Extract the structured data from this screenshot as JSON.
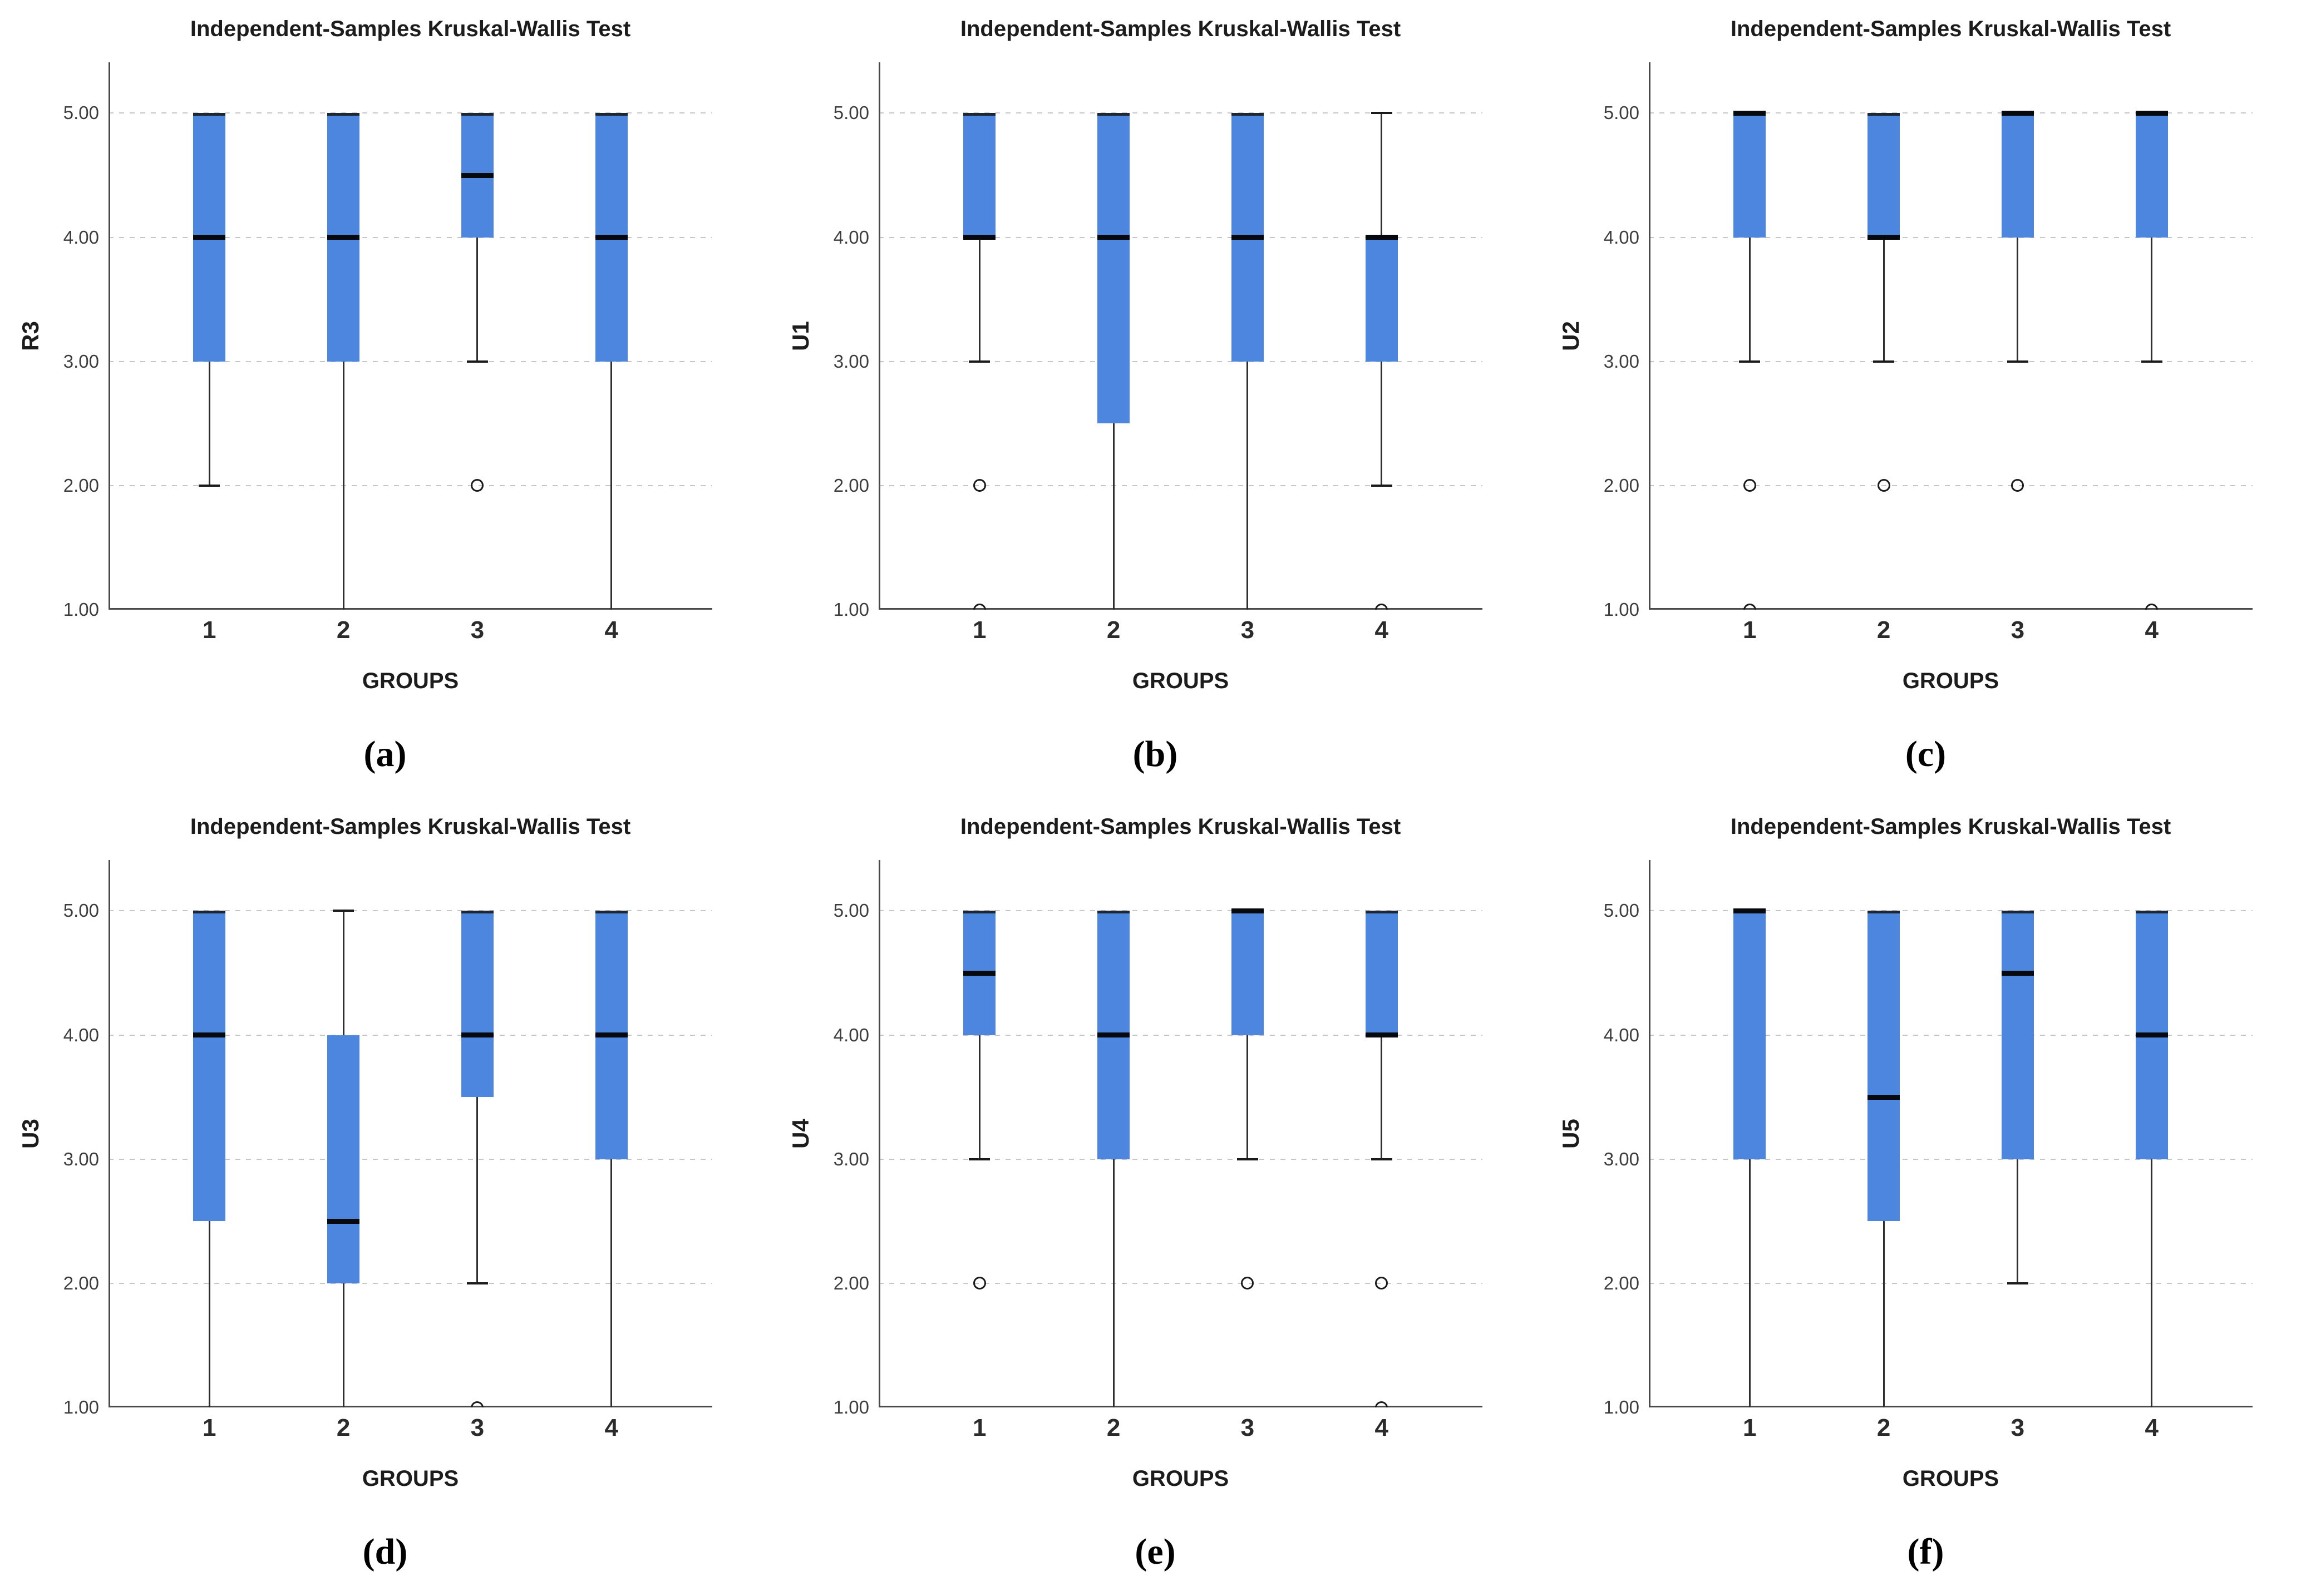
{
  "figure": {
    "background": "#ffffff",
    "box_fill_color": "#4c86df",
    "median_color": "#06090e",
    "gridline_color": "#c6c6c6",
    "axis_color": "#4a4a4a"
  },
  "chart_data": [
    {
      "type": "box",
      "panel_label": "(a)",
      "title": "Independent-Samples Kruskal-Wallis Test",
      "ylabel": "R3",
      "xlabel": "GROUPS",
      "categories": [
        "1",
        "2",
        "3",
        "4"
      ],
      "ytick_values": [
        5.0,
        4.0,
        3.0,
        2.0,
        1.0
      ],
      "ytick_labels": [
        "5.00",
        "4.00",
        "3.00",
        "2.00",
        "1.00"
      ],
      "ylim": [
        1.0,
        5.41
      ],
      "grid": "dashed-horizontal",
      "legend": "none",
      "boxes": [
        {
          "group": "1",
          "q1": 3.0,
          "median": 4.0,
          "q3": 5.0,
          "whisker_low": 2.0,
          "whisker_high": 5.0,
          "outliers": []
        },
        {
          "group": "2",
          "q1": 3.0,
          "median": 4.0,
          "q3": 5.0,
          "whisker_low": 1.0,
          "whisker_high": 5.0,
          "outliers": []
        },
        {
          "group": "3",
          "q1": 4.0,
          "median": 4.5,
          "q3": 5.0,
          "whisker_low": 3.0,
          "whisker_high": 5.0,
          "outliers": [
            2.0
          ]
        },
        {
          "group": "4",
          "q1": 3.0,
          "median": 4.0,
          "q3": 5.0,
          "whisker_low": 1.0,
          "whisker_high": 5.0,
          "outliers": []
        }
      ]
    },
    {
      "type": "box",
      "panel_label": "(b)",
      "title": "Independent-Samples Kruskal-Wallis Test",
      "ylabel": "U1",
      "xlabel": "GROUPS",
      "categories": [
        "1",
        "2",
        "3",
        "4"
      ],
      "ytick_values": [
        5.0,
        4.0,
        3.0,
        2.0,
        1.0
      ],
      "ytick_labels": [
        "5.00",
        "4.00",
        "3.00",
        "2.00",
        "1.00"
      ],
      "ylim": [
        1.0,
        5.41
      ],
      "grid": "dashed-horizontal",
      "legend": "none",
      "boxes": [
        {
          "group": "1",
          "q1": 4.0,
          "median": 4.0,
          "q3": 5.0,
          "whisker_low": 3.0,
          "whisker_high": 5.0,
          "outliers": [
            2.0,
            1.0
          ]
        },
        {
          "group": "2",
          "q1": 2.5,
          "median": 4.0,
          "q3": 5.0,
          "whisker_low": 1.0,
          "whisker_high": 5.0,
          "outliers": []
        },
        {
          "group": "3",
          "q1": 3.0,
          "median": 4.0,
          "q3": 5.0,
          "whisker_low": 1.0,
          "whisker_high": 5.0,
          "outliers": []
        },
        {
          "group": "4",
          "q1": 3.0,
          "median": 4.0,
          "q3": 4.0,
          "whisker_low": 2.0,
          "whisker_high": 5.0,
          "outliers": [
            1.0
          ]
        }
      ]
    },
    {
      "type": "box",
      "panel_label": "(c)",
      "title": "Independent-Samples Kruskal-Wallis Test",
      "ylabel": "U2",
      "xlabel": "GROUPS",
      "categories": [
        "1",
        "2",
        "3",
        "4"
      ],
      "ytick_values": [
        5.0,
        4.0,
        3.0,
        2.0,
        1.0
      ],
      "ytick_labels": [
        "5.00",
        "4.00",
        "3.00",
        "2.00",
        "1.00"
      ],
      "ylim": [
        1.0,
        5.41
      ],
      "grid": "dashed-horizontal",
      "legend": "none",
      "boxes": [
        {
          "group": "1",
          "q1": 4.0,
          "median": 5.0,
          "q3": 5.0,
          "whisker_low": 3.0,
          "whisker_high": 5.0,
          "outliers": [
            2.0,
            1.0
          ]
        },
        {
          "group": "2",
          "q1": 4.0,
          "median": 4.0,
          "q3": 5.0,
          "whisker_low": 3.0,
          "whisker_high": 5.0,
          "outliers": [
            2.0
          ]
        },
        {
          "group": "3",
          "q1": 4.0,
          "median": 5.0,
          "q3": 5.0,
          "whisker_low": 3.0,
          "whisker_high": 5.0,
          "outliers": [
            2.0
          ]
        },
        {
          "group": "4",
          "q1": 4.0,
          "median": 5.0,
          "q3": 5.0,
          "whisker_low": 3.0,
          "whisker_high": 5.0,
          "outliers": [
            1.0
          ]
        }
      ]
    },
    {
      "type": "box",
      "panel_label": "(d)",
      "title": "Independent-Samples Kruskal-Wallis Test",
      "ylabel": "U3",
      "xlabel": "GROUPS",
      "categories": [
        "1",
        "2",
        "3",
        "4"
      ],
      "ytick_values": [
        5.0,
        4.0,
        3.0,
        2.0,
        1.0
      ],
      "ytick_labels": [
        "5.00",
        "4.00",
        "3.00",
        "2.00",
        "1.00"
      ],
      "ylim": [
        1.0,
        5.41
      ],
      "grid": "dashed-horizontal",
      "legend": "none",
      "boxes": [
        {
          "group": "1",
          "q1": 2.5,
          "median": 4.0,
          "q3": 5.0,
          "whisker_low": 1.0,
          "whisker_high": 5.0,
          "outliers": []
        },
        {
          "group": "2",
          "q1": 2.0,
          "median": 2.5,
          "q3": 4.0,
          "whisker_low": 1.0,
          "whisker_high": 5.0,
          "outliers": []
        },
        {
          "group": "3",
          "q1": 3.5,
          "median": 4.0,
          "q3": 5.0,
          "whisker_low": 2.0,
          "whisker_high": 5.0,
          "outliers": [
            1.0
          ]
        },
        {
          "group": "4",
          "q1": 3.0,
          "median": 4.0,
          "q3": 5.0,
          "whisker_low": 1.0,
          "whisker_high": 5.0,
          "outliers": []
        }
      ]
    },
    {
      "type": "box",
      "panel_label": "(e)",
      "title": "Independent-Samples Kruskal-Wallis Test",
      "ylabel": "U4",
      "xlabel": "GROUPS",
      "categories": [
        "1",
        "2",
        "3",
        "4"
      ],
      "ytick_values": [
        5.0,
        4.0,
        3.0,
        2.0,
        1.0
      ],
      "ytick_labels": [
        "5.00",
        "4.00",
        "3.00",
        "2.00",
        "1.00"
      ],
      "ylim": [
        1.0,
        5.41
      ],
      "grid": "dashed-horizontal",
      "legend": "none",
      "boxes": [
        {
          "group": "1",
          "q1": 4.0,
          "median": 4.5,
          "q3": 5.0,
          "whisker_low": 3.0,
          "whisker_high": 5.0,
          "outliers": [
            2.0
          ]
        },
        {
          "group": "2",
          "q1": 3.0,
          "median": 4.0,
          "q3": 5.0,
          "whisker_low": 1.0,
          "whisker_high": 5.0,
          "outliers": []
        },
        {
          "group": "3",
          "q1": 4.0,
          "median": 5.0,
          "q3": 5.0,
          "whisker_low": 3.0,
          "whisker_high": 5.0,
          "outliers": [
            2.0
          ]
        },
        {
          "group": "4",
          "q1": 4.0,
          "median": 4.0,
          "q3": 5.0,
          "whisker_low": 3.0,
          "whisker_high": 5.0,
          "outliers": [
            2.0,
            1.0
          ]
        }
      ]
    },
    {
      "type": "box",
      "panel_label": "(f)",
      "title": "Independent-Samples Kruskal-Wallis Test",
      "ylabel": "U5",
      "xlabel": "GROUPS",
      "categories": [
        "1",
        "2",
        "3",
        "4"
      ],
      "ytick_values": [
        5.0,
        4.0,
        3.0,
        2.0,
        1.0
      ],
      "ytick_labels": [
        "5.00",
        "4.00",
        "3.00",
        "2.00",
        "1.00"
      ],
      "ylim": [
        1.0,
        5.41
      ],
      "grid": "dashed-horizontal",
      "legend": "none",
      "boxes": [
        {
          "group": "1",
          "q1": 3.0,
          "median": 5.0,
          "q3": 5.0,
          "whisker_low": 1.0,
          "whisker_high": 5.0,
          "outliers": []
        },
        {
          "group": "2",
          "q1": 2.5,
          "median": 3.5,
          "q3": 5.0,
          "whisker_low": 1.0,
          "whisker_high": 5.0,
          "outliers": []
        },
        {
          "group": "3",
          "q1": 3.0,
          "median": 4.5,
          "q3": 5.0,
          "whisker_low": 2.0,
          "whisker_high": 5.0,
          "outliers": []
        },
        {
          "group": "4",
          "q1": 3.0,
          "median": 4.0,
          "q3": 5.0,
          "whisker_low": 1.0,
          "whisker_high": 5.0,
          "outliers": []
        }
      ]
    }
  ]
}
